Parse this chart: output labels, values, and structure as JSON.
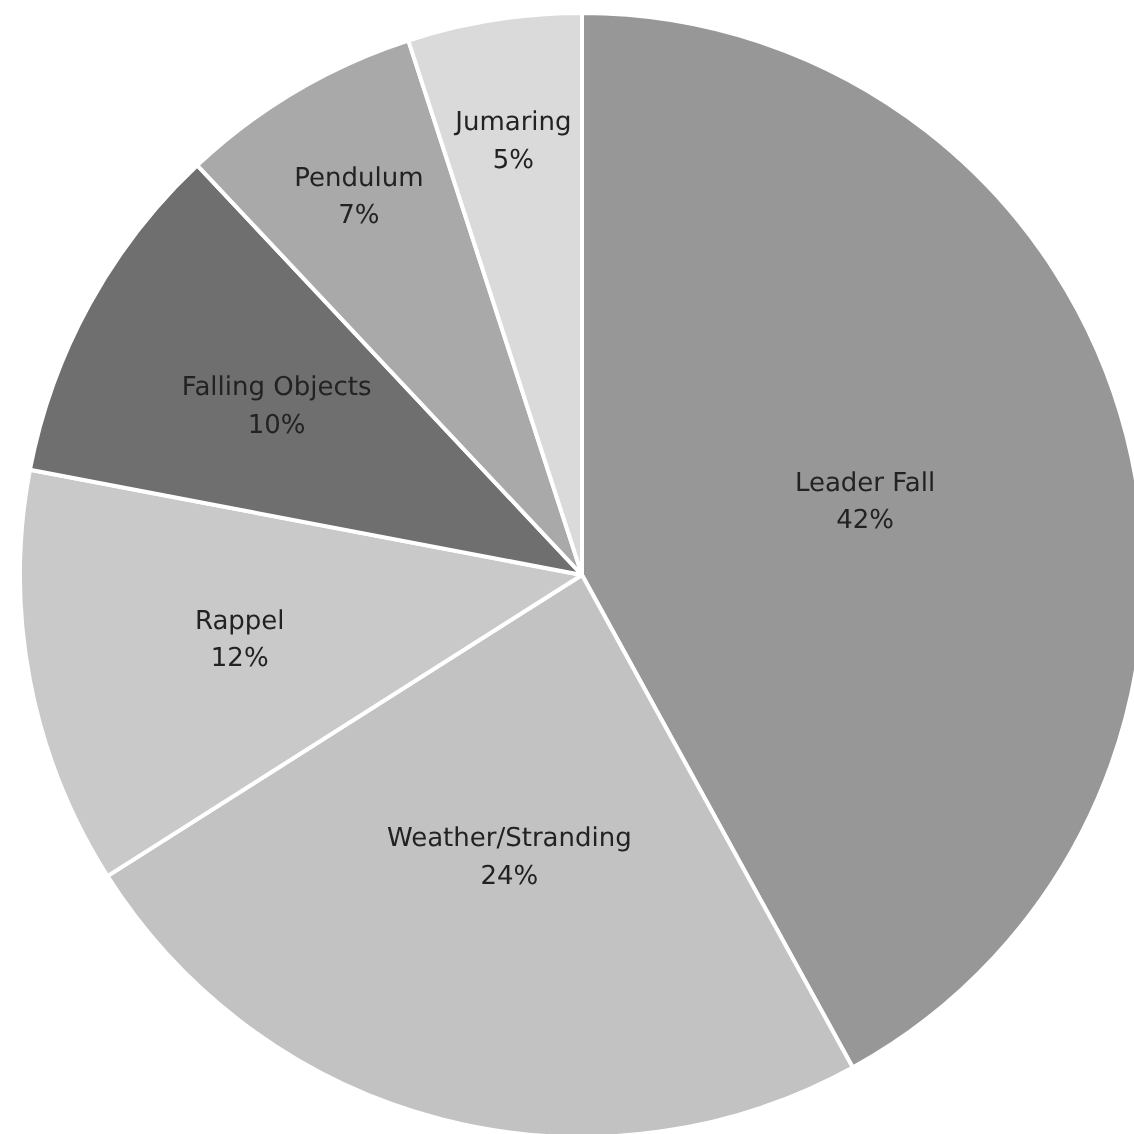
{
  "chart_data": {
    "type": "pie",
    "categories": [
      "Leader Fall",
      "Weather/Stranding",
      "Rappel",
      "Falling Objects",
      "Pendulum",
      "Jumaring"
    ],
    "values": [
      42,
      24,
      12,
      10,
      7,
      5
    ],
    "colors": [
      "#979797",
      "#c2c2c2",
      "#c9c9c9",
      "#6f6f6f",
      "#a9a9a9",
      "#dadada"
    ],
    "value_labels": [
      "42%",
      "24%",
      "12%",
      "10%",
      "7%",
      "5%"
    ]
  }
}
